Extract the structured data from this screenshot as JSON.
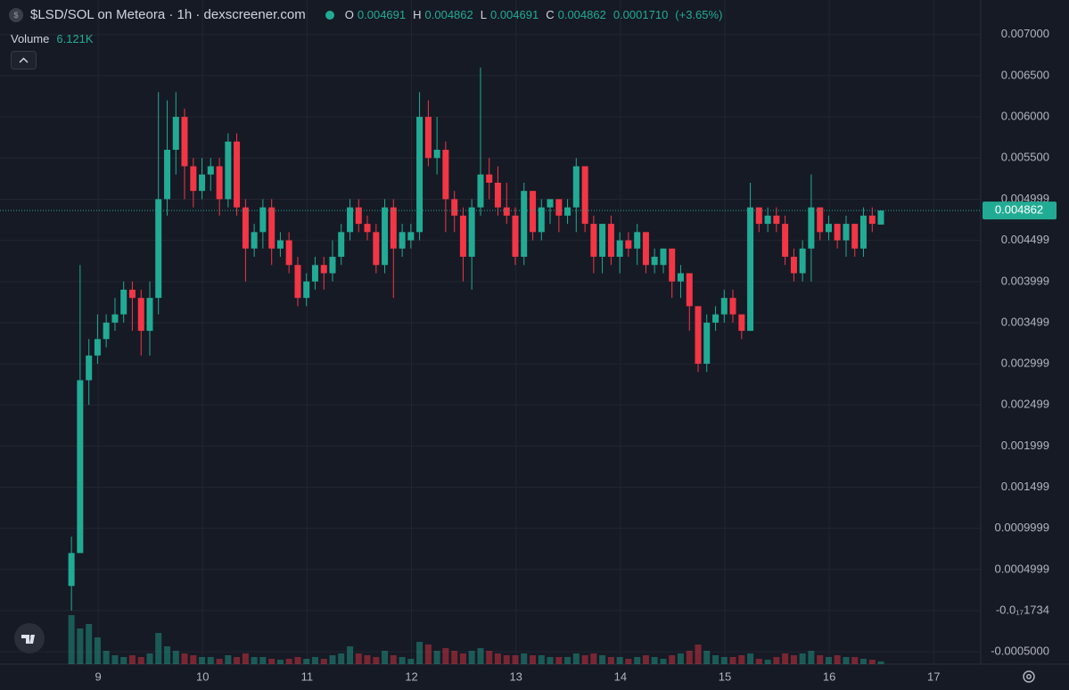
{
  "chart_data": {
    "type": "candlestick",
    "title": "$LSD/SOL on Meteora · 1h · dexscreener.com",
    "up_color": "#22ab94",
    "down_color": "#f23645",
    "grid": true,
    "legend": {
      "o_label": "O",
      "open": 0.004691,
      "h_label": "H",
      "high": 0.004862,
      "l_label": "L",
      "low": 0.004691,
      "c_label": "C",
      "close": 0.004862,
      "change": {
        "value": 0.000171,
        "label": "0.0001710"
      },
      "change_pct_label": "(+3.65%)"
    },
    "volume": {
      "name": "Volume",
      "last_label": "6.121K",
      "values": [
        110000,
        80000,
        90000,
        60000,
        30000,
        20000,
        16000,
        20000,
        16000,
        24000,
        70000,
        40000,
        30000,
        24000,
        20000,
        16000,
        16000,
        12000,
        20000,
        16000,
        24000,
        16000,
        16000,
        12000,
        10000,
        12000,
        16000,
        12000,
        16000,
        12000,
        20000,
        24000,
        40000,
        24000,
        20000,
        16000,
        30000,
        20000,
        16000,
        12000,
        50000,
        44000,
        30000,
        36000,
        30000,
        24000,
        30000,
        36000,
        30000,
        24000,
        20000,
        20000,
        24000,
        20000,
        20000,
        16000,
        16000,
        16000,
        24000,
        20000,
        24000,
        20000,
        16000,
        16000,
        12000,
        16000,
        20000,
        16000,
        12000,
        20000,
        24000,
        30000,
        44000,
        30000,
        20000,
        16000,
        16000,
        20000,
        24000,
        12000,
        10000,
        16000,
        24000,
        20000,
        24000,
        30000,
        20000,
        16000,
        20000,
        16000,
        16000,
        12000,
        10000,
        6121
      ]
    },
    "x": [
      8.744,
      8.827,
      8.911,
      8.994,
      9.077,
      9.161,
      9.244,
      9.327,
      9.411,
      9.494,
      9.577,
      9.661,
      9.744,
      9.827,
      9.911,
      9.994,
      10.077,
      10.161,
      10.244,
      10.327,
      10.411,
      10.494,
      10.577,
      10.661,
      10.744,
      10.827,
      10.911,
      10.994,
      11.077,
      11.161,
      11.244,
      11.327,
      11.411,
      11.494,
      11.577,
      11.661,
      11.744,
      11.827,
      11.911,
      11.994,
      12.077,
      12.161,
      12.244,
      12.327,
      12.411,
      12.494,
      12.577,
      12.661,
      12.744,
      12.827,
      12.911,
      12.994,
      13.077,
      13.161,
      13.244,
      13.327,
      13.411,
      13.494,
      13.577,
      13.661,
      13.744,
      13.827,
      13.911,
      13.994,
      14.077,
      14.161,
      14.244,
      14.327,
      14.411,
      14.494,
      14.577,
      14.661,
      14.744,
      14.827,
      14.911,
      14.994,
      15.077,
      15.161,
      15.244,
      15.327,
      15.411,
      15.494,
      15.577,
      15.661,
      15.744,
      15.827,
      15.911,
      15.994,
      16.077,
      16.161,
      16.244,
      16.327,
      16.411,
      16.494
    ],
    "open": [
      0.0003,
      0.0007,
      0.0028,
      0.0031,
      0.0033,
      0.0035,
      0.0036,
      0.0039,
      0.0038,
      0.0034,
      0.0038,
      0.005,
      0.0056,
      0.006,
      0.0054,
      0.0051,
      0.0053,
      0.0054,
      0.005,
      0.0057,
      0.0049,
      0.0044,
      0.0046,
      0.0049,
      0.0044,
      0.0045,
      0.0042,
      0.0038,
      0.004,
      0.0042,
      0.0041,
      0.0043,
      0.0046,
      0.0049,
      0.0047,
      0.0046,
      0.0042,
      0.0049,
      0.0044,
      0.0045,
      0.0046,
      0.006,
      0.0055,
      0.0056,
      0.005,
      0.0048,
      0.0043,
      0.0049,
      0.0053,
      0.0052,
      0.0049,
      0.0048,
      0.0043,
      0.0051,
      0.0046,
      0.0049,
      0.005,
      0.0048,
      0.0049,
      0.0054,
      0.0047,
      0.0043,
      0.0047,
      0.0043,
      0.0045,
      0.0044,
      0.0046,
      0.0042,
      0.0042,
      0.0044,
      0.004,
      0.0041,
      0.0037,
      0.003,
      0.0035,
      0.0036,
      0.0038,
      0.0036,
      0.0034,
      0.0049,
      0.0047,
      0.0048,
      0.0047,
      0.0043,
      0.0041,
      0.0044,
      0.0049,
      0.0046,
      0.0047,
      0.0045,
      0.0047,
      0.0044,
      0.0048,
      0.004691
    ],
    "high": [
      0.0009,
      0.0042,
      0.0033,
      0.0036,
      0.0036,
      0.0038,
      0.004,
      0.004,
      0.0039,
      0.004,
      0.0063,
      0.0062,
      0.0063,
      0.0061,
      0.0055,
      0.0055,
      0.0055,
      0.0055,
      0.0058,
      0.0058,
      0.005,
      0.0047,
      0.005,
      0.005,
      0.0046,
      0.0046,
      0.0043,
      0.0041,
      0.0043,
      0.0043,
      0.0045,
      0.0047,
      0.005,
      0.005,
      0.0048,
      0.0047,
      0.005,
      0.005,
      0.0047,
      0.0047,
      0.0063,
      0.0062,
      0.006,
      0.0057,
      0.0051,
      0.0049,
      0.005,
      0.0066,
      0.0055,
      0.0054,
      0.0052,
      0.0049,
      0.0052,
      0.0051,
      0.005,
      0.005,
      0.005,
      0.005,
      0.0055,
      0.0054,
      0.0048,
      0.0047,
      0.0048,
      0.0046,
      0.0046,
      0.0047,
      0.0046,
      0.0044,
      0.0044,
      0.0044,
      0.0042,
      0.0041,
      0.0037,
      0.0036,
      0.0037,
      0.0039,
      0.0039,
      0.0036,
      0.0052,
      0.0049,
      0.0049,
      0.0049,
      0.0048,
      0.0044,
      0.0045,
      0.0053,
      0.0049,
      0.0048,
      0.0047,
      0.0048,
      0.0047,
      0.0049,
      0.0049,
      0.004862
    ],
    "low": [
      0,
      0.0007,
      0.0025,
      0.003,
      0.0032,
      0.0034,
      0.0035,
      0.0034,
      0.0031,
      0.0031,
      0.0036,
      0.0048,
      0.0053,
      0.005,
      0.0049,
      0.005,
      0.0051,
      0.0048,
      0.0049,
      0.0048,
      0.004,
      0.0043,
      0.0044,
      0.0042,
      0.0043,
      0.0041,
      0.0037,
      0.0037,
      0.0039,
      0.0039,
      0.004,
      0.0042,
      0.0045,
      0.0046,
      0.0045,
      0.0041,
      0.0041,
      0.0038,
      0.0043,
      0.0044,
      0.0045,
      0.0054,
      0.0053,
      0.0046,
      0.0046,
      0.004,
      0.0039,
      0.0048,
      0.005,
      0.0048,
      0.0047,
      0.0042,
      0.0042,
      0.0045,
      0.0045,
      0.0047,
      0.0046,
      0.0047,
      0.0046,
      0.0046,
      0.0041,
      0.0041,
      0.0042,
      0.0041,
      0.0043,
      0.0042,
      0.0041,
      0.0041,
      0.0041,
      0.0038,
      0.0038,
      0.0034,
      0.0029,
      0.0029,
      0.0034,
      0.0035,
      0.0035,
      0.0033,
      0.0034,
      0.0046,
      0.0046,
      0.0046,
      0.0042,
      0.004,
      0.004,
      0.004,
      0.0045,
      0.0045,
      0.0044,
      0.0043,
      0.0043,
      0.0043,
      0.0046,
      0.004691
    ],
    "close": [
      0.0007,
      0.0028,
      0.0031,
      0.0033,
      0.0035,
      0.0036,
      0.0039,
      0.0038,
      0.0034,
      0.0038,
      0.005,
      0.0056,
      0.006,
      0.0054,
      0.0051,
      0.0053,
      0.0054,
      0.005,
      0.0057,
      0.0049,
      0.0044,
      0.0046,
      0.0049,
      0.0044,
      0.0045,
      0.0042,
      0.0038,
      0.004,
      0.0042,
      0.0041,
      0.0043,
      0.0046,
      0.0049,
      0.0047,
      0.0046,
      0.0042,
      0.0049,
      0.0044,
      0.0046,
      0.0046,
      0.006,
      0.0055,
      0.0056,
      0.005,
      0.0048,
      0.0043,
      0.0049,
      0.0053,
      0.0052,
      0.0049,
      0.0048,
      0.0043,
      0.0051,
      0.0046,
      0.0049,
      0.005,
      0.0048,
      0.0049,
      0.0054,
      0.0047,
      0.0043,
      0.0047,
      0.0043,
      0.0045,
      0.0044,
      0.0046,
      0.0042,
      0.0043,
      0.0044,
      0.004,
      0.0041,
      0.0037,
      0.003,
      0.0035,
      0.0036,
      0.0038,
      0.0036,
      0.0034,
      0.0049,
      0.0047,
      0.0048,
      0.0047,
      0.0043,
      0.0041,
      0.0044,
      0.0049,
      0.0046,
      0.0047,
      0.0045,
      0.0047,
      0.0044,
      0.0048,
      0.0047,
      0.004862
    ],
    "xlim": [
      8.06,
      17.45
    ],
    "xticks": [
      9,
      10,
      11,
      12,
      13,
      14,
      15,
      16,
      17
    ],
    "ylim": [
      -0.00065,
      0.00742
    ],
    "yticks": [
      {
        "value": 0.007,
        "label": "0.007000"
      },
      {
        "value": 0.0065,
        "label": "0.006500"
      },
      {
        "value": 0.006,
        "label": "0.006000"
      },
      {
        "value": 0.0055,
        "label": "0.005500"
      },
      0.004999,
      0.004499,
      0.003999,
      0.003499,
      0.002999,
      0.002499,
      0.001999,
      0.001499,
      0.0009999,
      0.0004999,
      {
        "value": -1.734e-18,
        "label": "-0.0₁₇1734"
      },
      {
        "value": -0.0005,
        "label": "-0.0005000"
      }
    ]
  }
}
